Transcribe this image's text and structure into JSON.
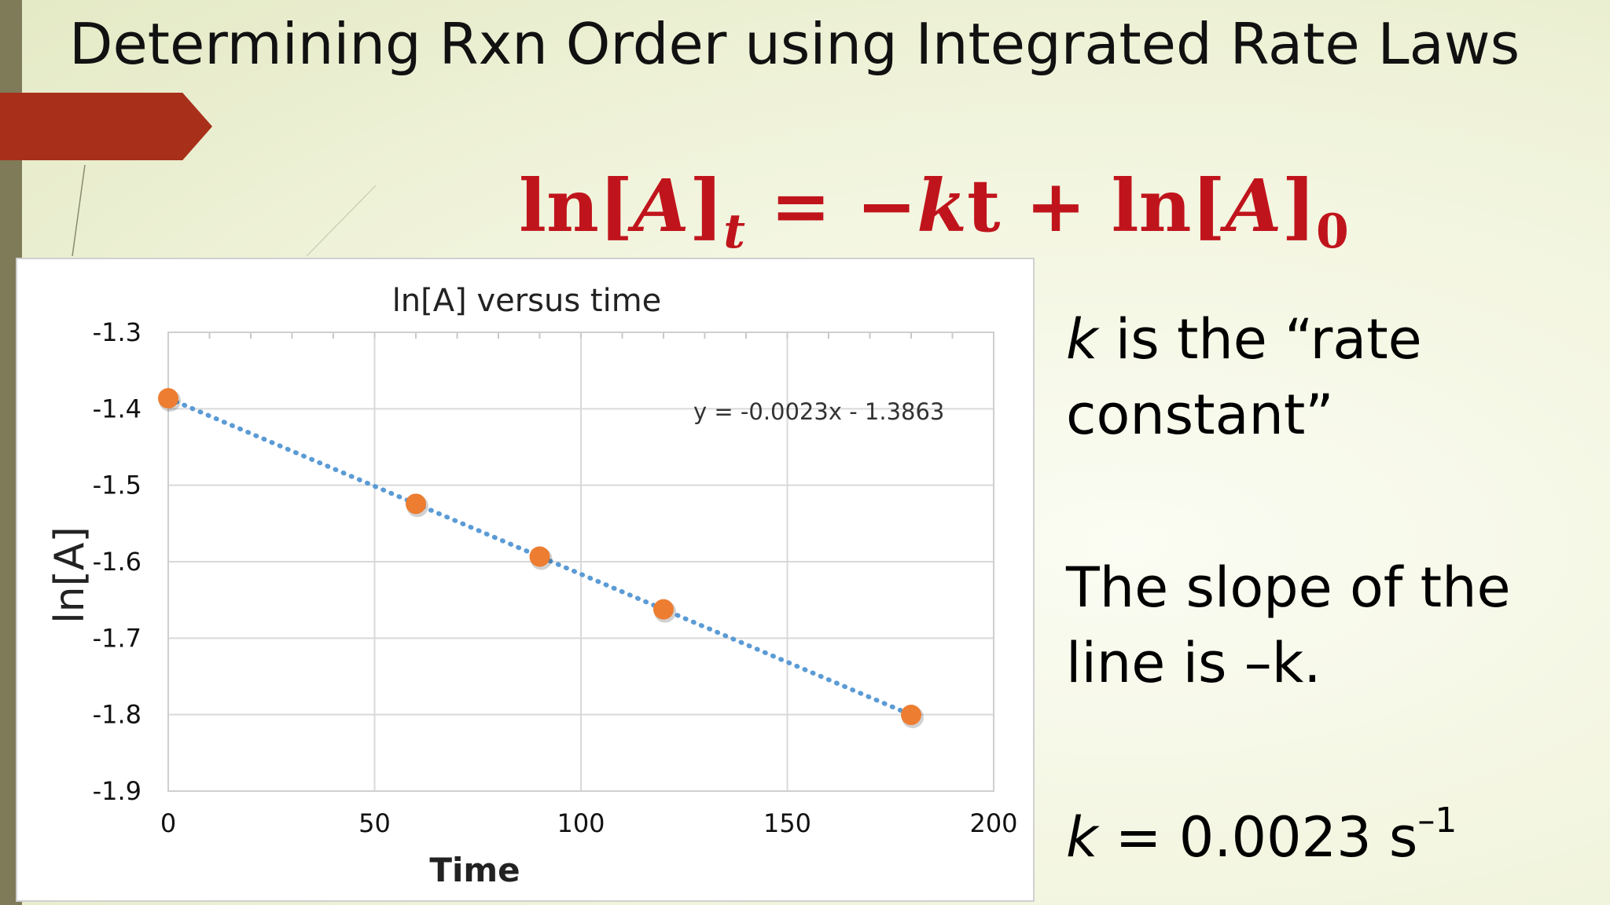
{
  "slide": {
    "title": "Determining Rxn Order using Integrated Rate Laws",
    "equation": {
      "lhs": "ln[",
      "var_a": "A",
      "lhs_close": "]",
      "lhs_sub": "t",
      "eq": " = −",
      "k": "k",
      "t": "t",
      "plus": " + ln[",
      "var_a2": "A",
      "rhs_close": "]",
      "rhs_sub": "0"
    },
    "k_definition": {
      "k": "k",
      "line1": " is the “rate",
      "line2": "constant”"
    },
    "slope_note": {
      "line1": "The slope of the",
      "line2": "line is –k."
    },
    "k_value": {
      "k": "k",
      "text": " = 0.0023 s",
      "sup": "–1"
    }
  },
  "colors": {
    "accent_red": "#c0141c",
    "arrow": "#a8301b",
    "left_bar": "#7f7a57",
    "point": "#ed7d31",
    "trend": "#5b9bd5"
  },
  "chart_data": {
    "type": "scatter",
    "title": "ln[A] versus time",
    "xlabel": "Time",
    "ylabel": "ln[A]",
    "xlim": [
      0,
      200
    ],
    "ylim": [
      -1.9,
      -1.3
    ],
    "xticks": [
      0,
      50,
      100,
      150,
      200
    ],
    "yticks": [
      -1.3,
      -1.4,
      -1.5,
      -1.6,
      -1.7,
      -1.8,
      -1.9
    ],
    "grid": true,
    "series": [
      {
        "x": [
          0,
          60,
          90,
          120,
          180
        ],
        "y": [
          -1.3863,
          -1.5243,
          -1.5933,
          -1.6623,
          -1.8003
        ]
      }
    ],
    "trendline": {
      "slope": -0.0023,
      "intercept": -1.3863,
      "style": "dotted",
      "label": "y = -0.0023x - 1.3863"
    }
  }
}
